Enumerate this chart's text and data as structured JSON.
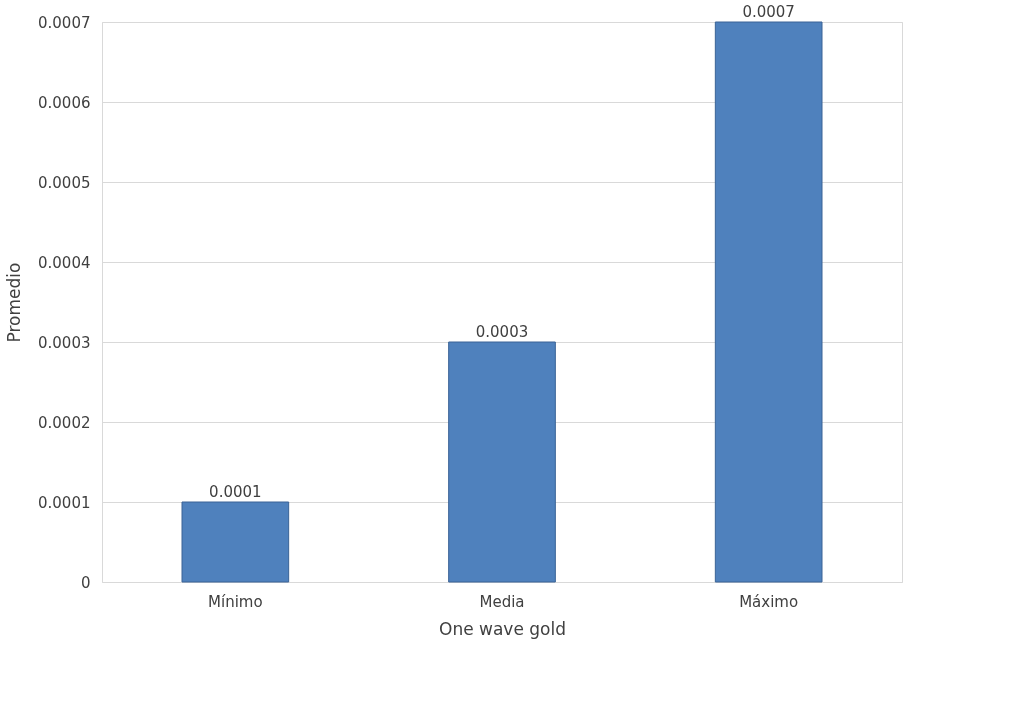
{
  "chart_data": {
    "type": "bar",
    "xlabel": "One wave gold",
    "ylabel": "Promedio",
    "categories": [
      "Mínimo",
      "Media",
      "Máximo"
    ],
    "series": [
      {
        "color": "#4f81bd",
        "values": [
          0.0001,
          0.0003,
          0.0007
        ]
      }
    ],
    "ylim": [
      0,
      0.0007
    ],
    "yticks": [
      0,
      0.0001,
      0.0002,
      0.0003,
      0.0004,
      0.0005,
      0.0006,
      0.0007
    ],
    "grid": "y",
    "data_labels": true
  }
}
